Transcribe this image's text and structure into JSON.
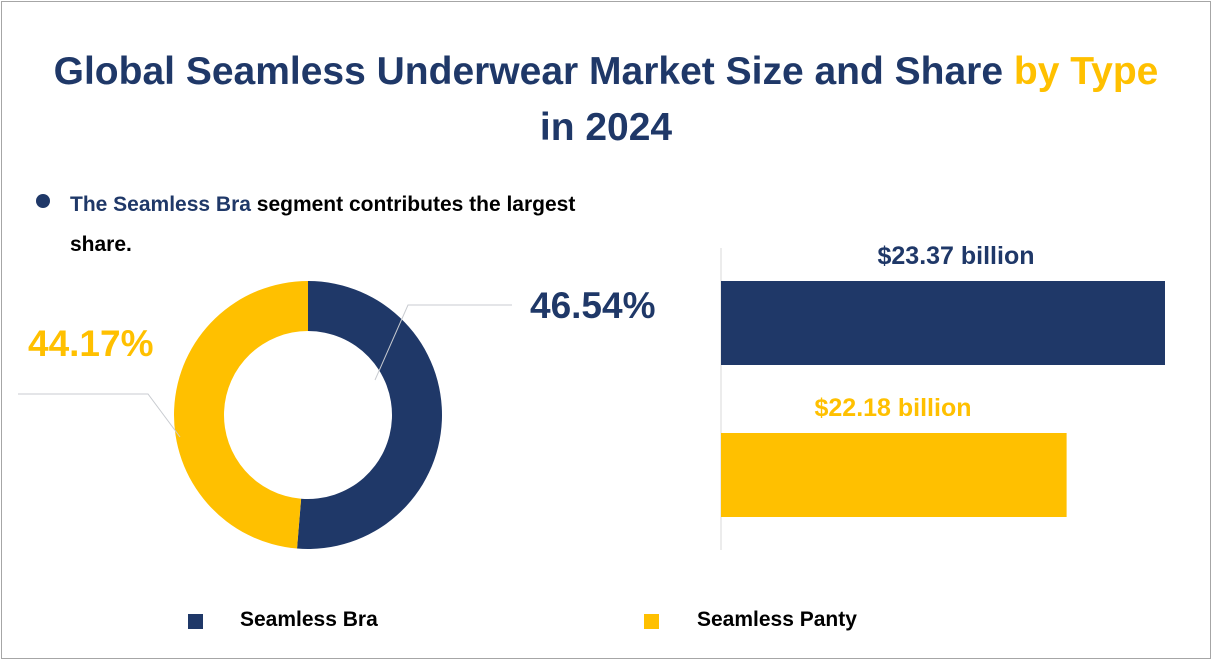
{
  "title": {
    "part1": "Global Seamless Underwear Market Size and Share ",
    "highlight": "by Type",
    "line2": "in 2024"
  },
  "note": {
    "emphasis": "The Seamless Bra",
    "rest": " segment contributes the largest share."
  },
  "colors": {
    "navy": "#1f3868",
    "yellow": "#ffc000"
  },
  "chart_data": [
    {
      "type": "pie",
      "variant": "donut",
      "categories": [
        "Seamless Bra",
        "Seamless Panty"
      ],
      "values": [
        46.54,
        44.17
      ],
      "labels": [
        "46.54%",
        "44.17%"
      ],
      "colors": [
        "#1f3868",
        "#ffc000"
      ]
    },
    {
      "type": "bar",
      "orientation": "horizontal",
      "categories": [
        "Seamless Bra",
        "Seamless Panty"
      ],
      "values": [
        23.37,
        22.18
      ],
      "labels": [
        "$23.37 billion",
        "$22.18 billion"
      ],
      "colors": [
        "#1f3868",
        "#ffc000"
      ],
      "xlim": [
        18,
        23.37
      ]
    }
  ],
  "legend": [
    "Seamless Bra",
    "Seamless Panty"
  ]
}
